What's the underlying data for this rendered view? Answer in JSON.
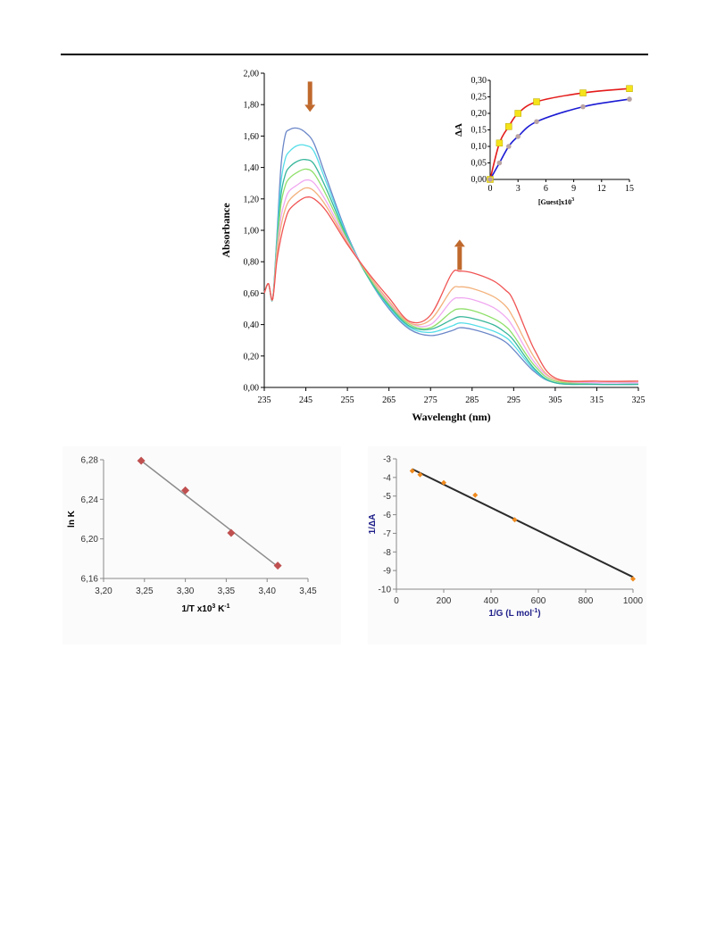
{
  "chart_data": [
    {
      "type": "line",
      "ylabel": "Absorbance",
      "xlabel": "Wavelenght (nm)",
      "xlim": [
        235,
        325
      ],
      "ylim": [
        0,
        2.0
      ],
      "xticks": [
        "235",
        "245",
        "255",
        "265",
        "275",
        "285",
        "295",
        "305",
        "315",
        "325"
      ],
      "yticks": [
        "0,00",
        "0,20",
        "0,40",
        "0,60",
        "0,80",
        "1,00",
        "1,20",
        "1,40",
        "1,60",
        "1,80",
        "2,00"
      ],
      "grid": false,
      "series": [
        {
          "color": "#6b87c8",
          "x": [
            235,
            236,
            237,
            238,
            239,
            240,
            241,
            243,
            245,
            247,
            250,
            255,
            260,
            265,
            270,
            275,
            280,
            282,
            285,
            290,
            293,
            295,
            300,
            305,
            315,
            325
          ],
          "y": [
            0.6,
            0.66,
            0.56,
            0.95,
            1.4,
            1.6,
            1.64,
            1.65,
            1.62,
            1.55,
            1.33,
            0.97,
            0.7,
            0.5,
            0.37,
            0.33,
            0.36,
            0.38,
            0.37,
            0.33,
            0.29,
            0.24,
            0.1,
            0.03,
            0.02,
            0.02
          ]
        },
        {
          "color": "#55dde8",
          "x": [
            235,
            236,
            237,
            238,
            239,
            240,
            241,
            243,
            245,
            247,
            250,
            255,
            260,
            265,
            270,
            275,
            280,
            282,
            285,
            290,
            293,
            295,
            300,
            305,
            315,
            325
          ],
          "y": [
            0.6,
            0.66,
            0.56,
            0.93,
            1.3,
            1.45,
            1.5,
            1.54,
            1.54,
            1.5,
            1.3,
            0.96,
            0.7,
            0.51,
            0.38,
            0.35,
            0.39,
            0.41,
            0.4,
            0.36,
            0.32,
            0.27,
            0.11,
            0.03,
            0.02,
            0.02
          ]
        },
        {
          "color": "#37b69a",
          "x": [
            235,
            236,
            237,
            238,
            239,
            240,
            241,
            243,
            245,
            247,
            250,
            255,
            260,
            265,
            270,
            275,
            280,
            282,
            285,
            290,
            293,
            295,
            300,
            305,
            315,
            325
          ],
          "y": [
            0.6,
            0.66,
            0.56,
            0.9,
            1.22,
            1.35,
            1.4,
            1.44,
            1.45,
            1.42,
            1.26,
            0.95,
            0.7,
            0.52,
            0.39,
            0.37,
            0.43,
            0.45,
            0.44,
            0.4,
            0.35,
            0.3,
            0.12,
            0.03,
            0.02,
            0.02
          ]
        },
        {
          "color": "#8fe06a",
          "x": [
            235,
            236,
            237,
            238,
            239,
            240,
            241,
            243,
            245,
            247,
            250,
            255,
            260,
            265,
            270,
            275,
            280,
            282,
            285,
            290,
            293,
            295,
            300,
            305,
            315,
            325
          ],
          "y": [
            0.6,
            0.66,
            0.56,
            0.88,
            1.16,
            1.28,
            1.33,
            1.37,
            1.39,
            1.36,
            1.22,
            0.94,
            0.71,
            0.53,
            0.4,
            0.38,
            0.48,
            0.5,
            0.49,
            0.44,
            0.39,
            0.33,
            0.14,
            0.04,
            0.03,
            0.03
          ]
        },
        {
          "color": "#f0a8f0",
          "x": [
            235,
            236,
            237,
            238,
            239,
            240,
            241,
            243,
            245,
            247,
            250,
            255,
            260,
            265,
            270,
            275,
            280,
            282,
            285,
            290,
            293,
            295,
            300,
            305,
            315,
            325
          ],
          "y": [
            0.6,
            0.66,
            0.56,
            0.85,
            1.08,
            1.19,
            1.25,
            1.29,
            1.32,
            1.3,
            1.18,
            0.93,
            0.72,
            0.54,
            0.41,
            0.4,
            0.55,
            0.57,
            0.56,
            0.51,
            0.45,
            0.38,
            0.16,
            0.05,
            0.03,
            0.03
          ]
        },
        {
          "color": "#f3b27d",
          "x": [
            235,
            236,
            237,
            238,
            239,
            240,
            241,
            243,
            245,
            247,
            250,
            255,
            260,
            265,
            270,
            275,
            280,
            282,
            285,
            290,
            293,
            295,
            300,
            305,
            315,
            325
          ],
          "y": [
            0.6,
            0.66,
            0.56,
            0.83,
            1.02,
            1.13,
            1.19,
            1.24,
            1.27,
            1.25,
            1.15,
            0.92,
            0.72,
            0.55,
            0.41,
            0.43,
            0.62,
            0.64,
            0.63,
            0.58,
            0.52,
            0.44,
            0.19,
            0.05,
            0.04,
            0.04
          ]
        },
        {
          "color": "#f05454",
          "x": [
            235,
            236,
            237,
            238,
            239,
            240,
            241,
            243,
            245,
            247,
            250,
            255,
            260,
            265,
            270,
            275,
            280,
            282,
            285,
            290,
            293,
            295,
            300,
            305,
            315,
            325
          ],
          "y": [
            0.6,
            0.66,
            0.56,
            0.8,
            0.95,
            1.06,
            1.13,
            1.18,
            1.21,
            1.2,
            1.12,
            0.91,
            0.73,
            0.57,
            0.42,
            0.46,
            0.72,
            0.74,
            0.73,
            0.68,
            0.62,
            0.55,
            0.24,
            0.06,
            0.04,
            0.04
          ]
        }
      ],
      "annotations": [
        {
          "type": "arrow-down",
          "color": "#c0692d",
          "x": 246,
          "y": 1.85
        },
        {
          "type": "arrow-up",
          "color": "#c0692d",
          "x": 282,
          "y": 0.85
        }
      ]
    },
    {
      "type": "scatter",
      "inset": true,
      "ylabel": "ΔA",
      "xlabel": "[Guest]x10",
      "xlabel_sup": "3",
      "xlim": [
        0,
        15
      ],
      "ylim": [
        0,
        0.3
      ],
      "xticks": [
        "0",
        "3",
        "6",
        "9",
        "12",
        "15"
      ],
      "yticks": [
        "0,00",
        "0,05",
        "0,10",
        "0,15",
        "0,20",
        "0,25",
        "0,30"
      ],
      "grid": false,
      "series": [
        {
          "marker": "square",
          "color": "#f5e31a",
          "line_color": "#e41b1b",
          "x": [
            0,
            1,
            2,
            3,
            5,
            10,
            15
          ],
          "y": [
            0,
            0.11,
            0.16,
            0.2,
            0.235,
            0.262,
            0.275
          ]
        },
        {
          "marker": "circle",
          "color": "#b9a3a3",
          "line_color": "#1b1bd4",
          "x": [
            0,
            1,
            2,
            3,
            5,
            10,
            15
          ],
          "y": [
            0,
            0.05,
            0.1,
            0.13,
            0.175,
            0.22,
            0.243
          ]
        }
      ]
    },
    {
      "type": "scatter",
      "ylabel": "ln K",
      "xlabel": "1/T  x10",
      "xlabel_sup": "3",
      "xlabel_tail": " K",
      "xlabel_tail_sup": "-1",
      "xlim": [
        3.2,
        3.45
      ],
      "ylim": [
        6.16,
        6.28
      ],
      "xticks": [
        "3,20",
        "3,25",
        "3,30",
        "3,35",
        "3,40",
        "3,45"
      ],
      "yticks": [
        "6,16",
        "6,20",
        "6,24",
        "6,28"
      ],
      "grid": false,
      "marker_color": "#c05050",
      "line_color": "#8c8c8c",
      "series": [
        {
          "x": [
            3.246,
            3.3,
            3.356,
            3.413
          ],
          "y": [
            6.279,
            6.249,
            6.206,
            6.173
          ]
        }
      ],
      "trendline": {
        "x": [
          3.246,
          3.413
        ],
        "y": [
          6.279,
          6.172
        ]
      }
    },
    {
      "type": "scatter",
      "ylabel": "1/ΔA",
      "xlabel": "1/G (L mol",
      "xlabel_sup": "-1",
      "xlabel_tail": ")",
      "xlim": [
        0,
        1000
      ],
      "ylim": [
        -10,
        -3
      ],
      "xticks": [
        "0",
        "200",
        "400",
        "600",
        "800",
        "1000"
      ],
      "yticks": [
        "-10",
        "-9",
        "-8",
        "-7",
        "-6",
        "-5",
        "-4",
        "-3"
      ],
      "grid": false,
      "marker_color": "#f08a1e",
      "line_color": "#2b2b2b",
      "axis_label_color": "#1f1f8a",
      "series": [
        {
          "x": [
            67,
            100,
            200,
            333,
            500,
            1000
          ],
          "y": [
            -3.65,
            -3.85,
            -4.28,
            -4.95,
            -6.27,
            -9.45
          ]
        }
      ],
      "trendline": {
        "x": [
          67,
          1000
        ],
        "y": [
          -3.55,
          -9.35
        ]
      }
    }
  ]
}
